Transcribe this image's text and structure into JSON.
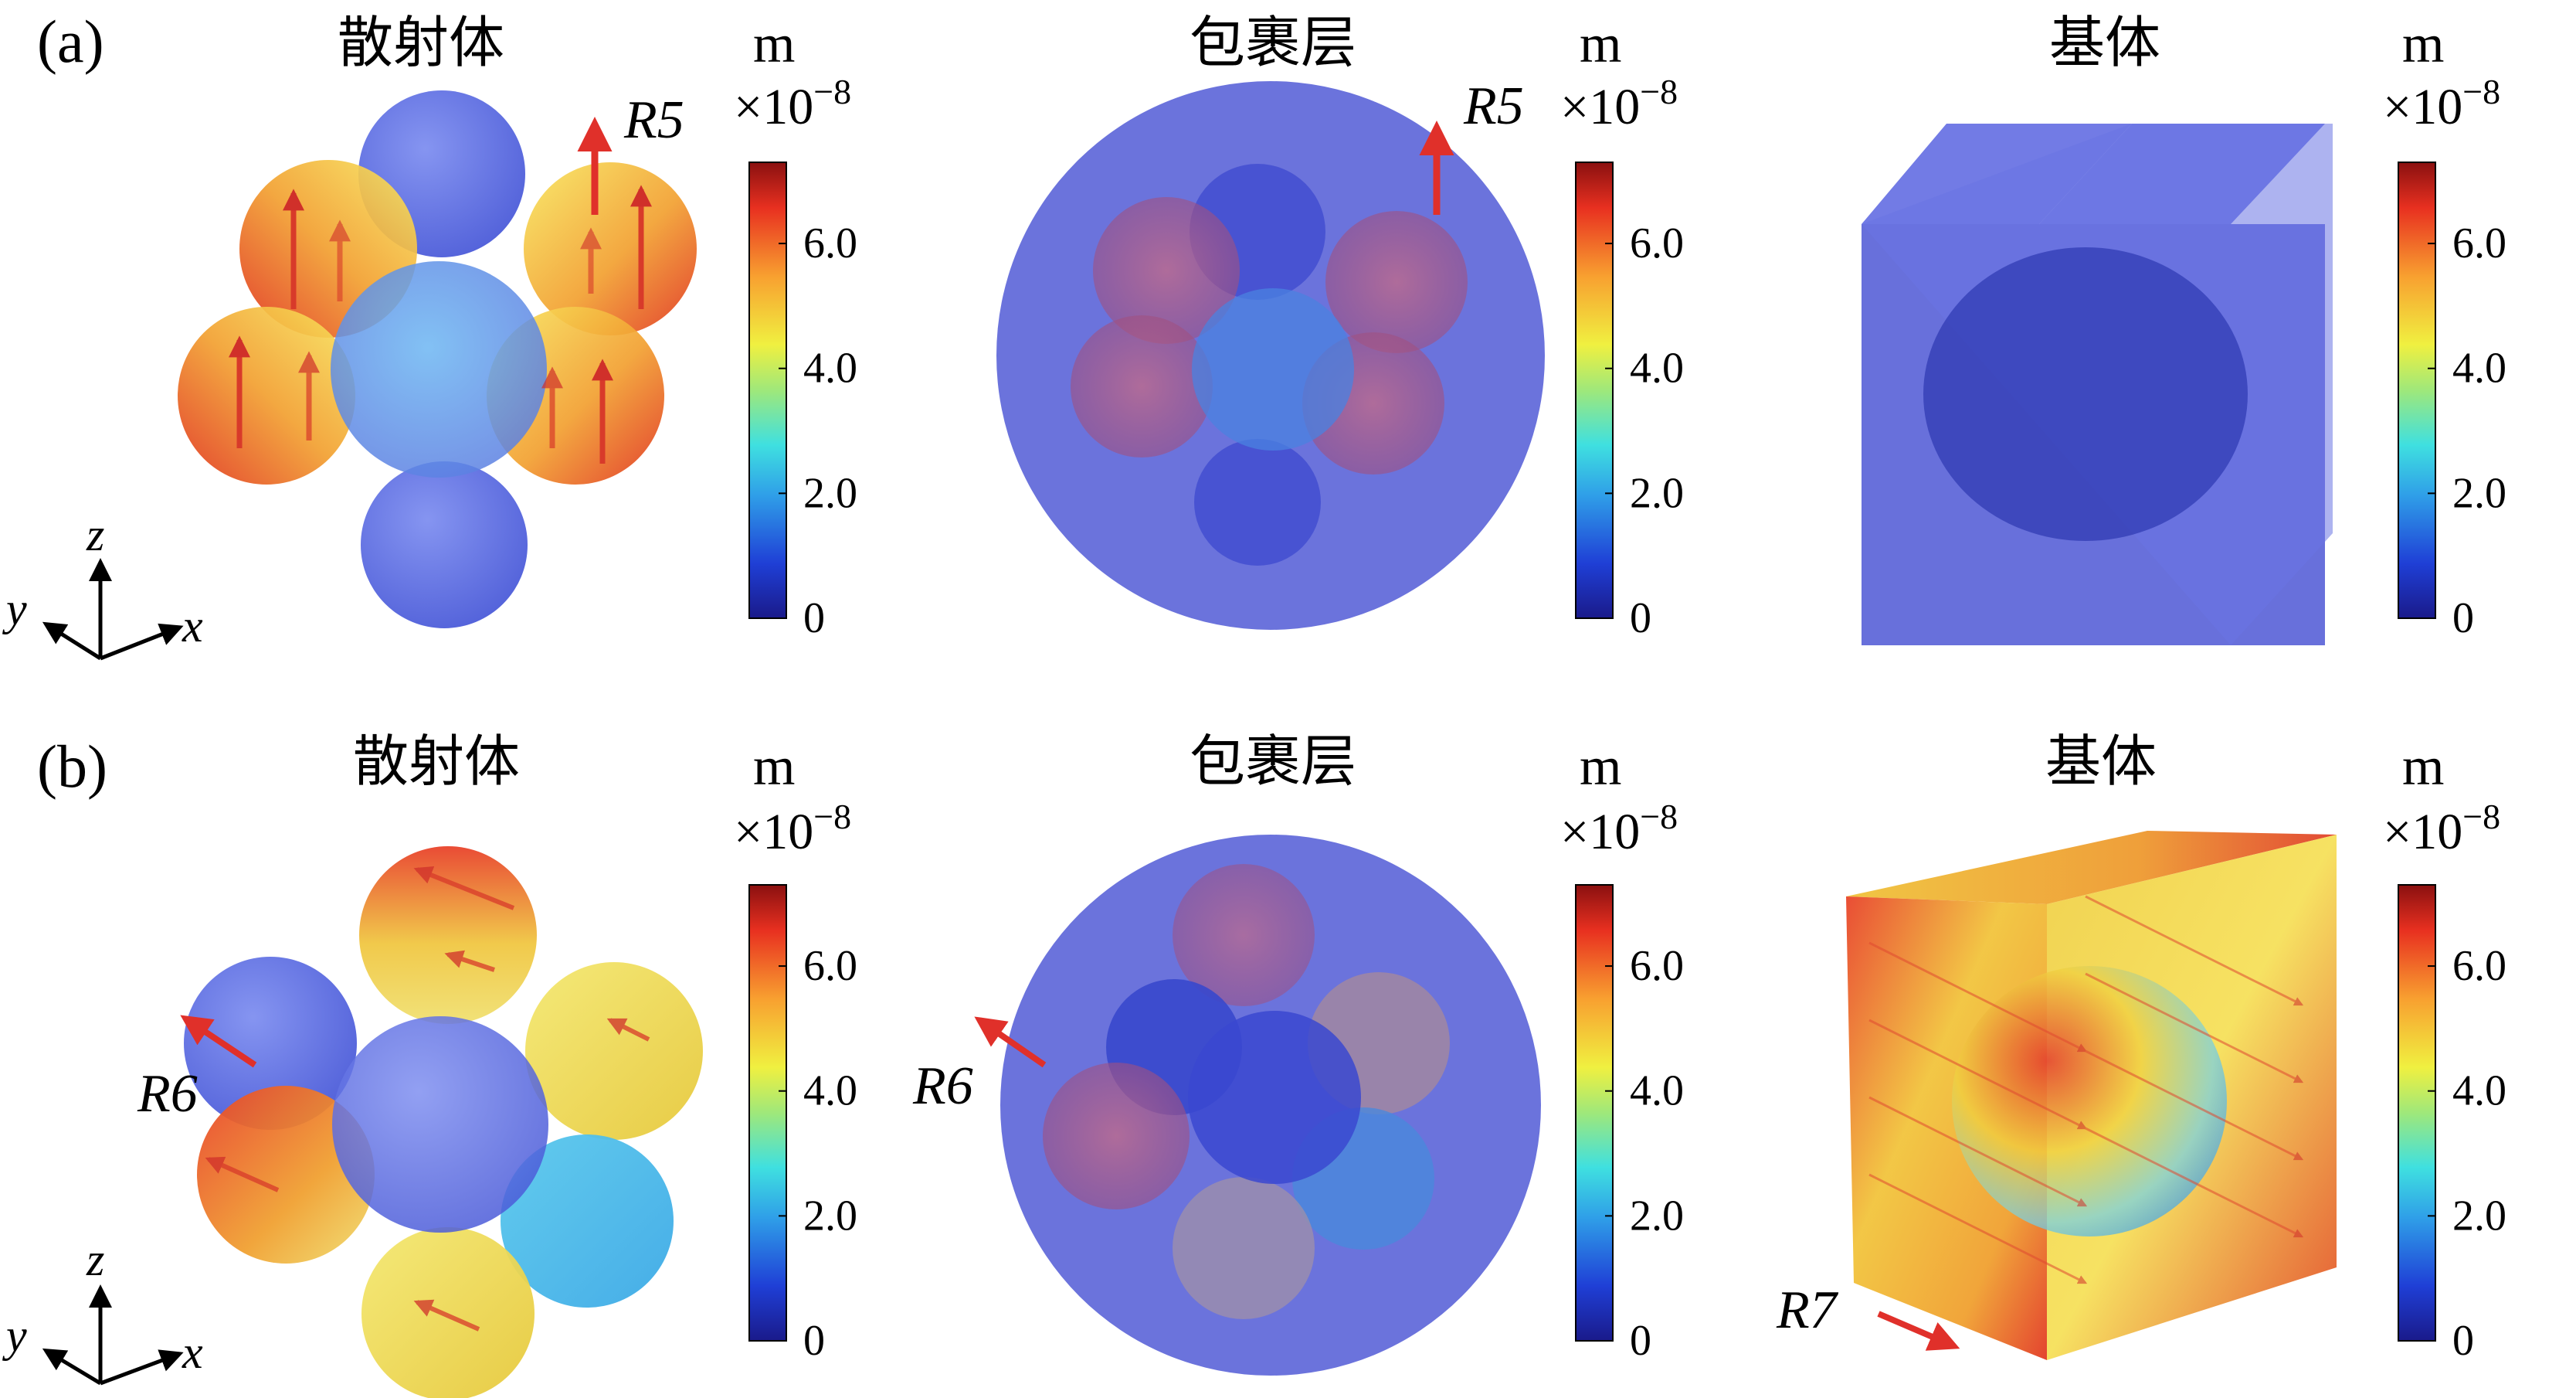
{
  "panels": [
    {
      "label": "(a)",
      "subfigures": [
        {
          "title": "散射体",
          "annotation": "R5"
        },
        {
          "title": "包裹层",
          "annotation": "R5"
        },
        {
          "title": "基体",
          "annotation": ""
        }
      ]
    },
    {
      "label": "(b)",
      "subfigures": [
        {
          "title": "散射体",
          "annotation": "R6"
        },
        {
          "title": "包裹层",
          "annotation": "R6"
        },
        {
          "title": "基体",
          "annotation": "R7"
        }
      ]
    }
  ],
  "colorbar": {
    "unit": "m",
    "scale_base": "×10",
    "scale_exp": "−8",
    "ticks": [
      "0",
      "2.0",
      "4.0",
      "6.0"
    ],
    "tick_values": [
      0,
      2,
      4,
      6
    ],
    "range": [
      0,
      7.3
    ],
    "colormap": [
      "#1a1a8a",
      "#1f3fd6",
      "#2f9fe8",
      "#3fe0e0",
      "#9fe87a",
      "#f0f040",
      "#f8a030",
      "#e83020",
      "#8a1010"
    ]
  },
  "axes_triad": {
    "z": "z",
    "y": "y",
    "x": "x"
  },
  "colors": {
    "body_blue": "#5a6ee6",
    "matrix_blue": "#5660d8",
    "arrow_red": "#e0302a",
    "hot": "#e02a1a",
    "warm": "#f0d24a"
  }
}
